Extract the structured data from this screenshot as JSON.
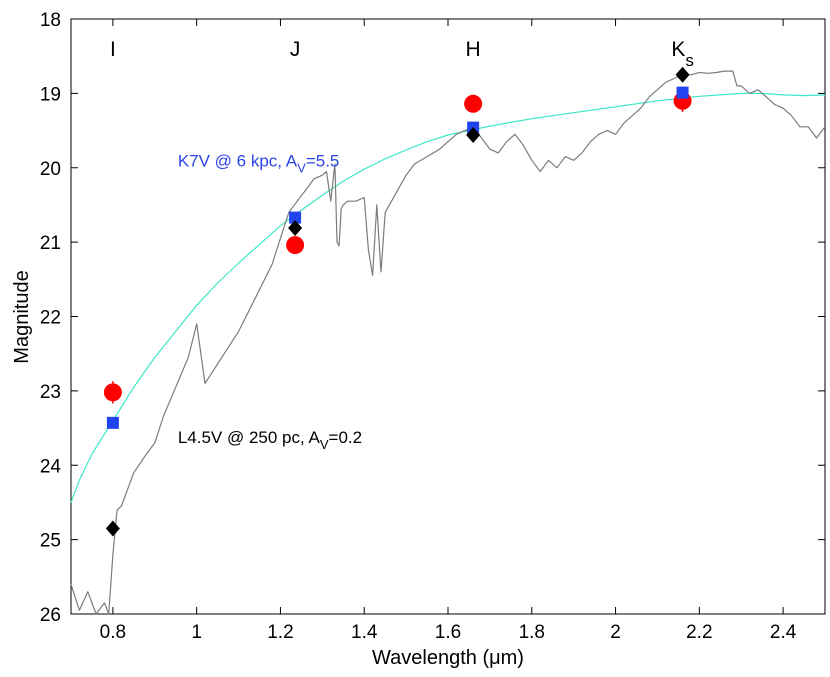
{
  "chart_data": {
    "type": "line",
    "xlabel": "Wavelength (μm)",
    "ylabel": "Magnitude",
    "xlim": [
      0.7,
      2.5
    ],
    "ylim": [
      26,
      18
    ],
    "y_inverted": true,
    "grid": false,
    "x_ticks": [
      {
        "value": 0.8,
        "label": "0.8"
      },
      {
        "value": 1.0,
        "label": "1"
      },
      {
        "value": 1.2,
        "label": "1.2"
      },
      {
        "value": 1.4,
        "label": "1.4"
      },
      {
        "value": 1.6,
        "label": "1.6"
      },
      {
        "value": 1.8,
        "label": "1.8"
      },
      {
        "value": 2.0,
        "label": "2"
      },
      {
        "value": 2.2,
        "label": "2.2"
      },
      {
        "value": 2.4,
        "label": "2.4"
      }
    ],
    "y_ticks": [
      {
        "value": 18,
        "label": "18"
      },
      {
        "value": 19,
        "label": "19"
      },
      {
        "value": 20,
        "label": "20"
      },
      {
        "value": 21,
        "label": "21"
      },
      {
        "value": 22,
        "label": "22"
      },
      {
        "value": 23,
        "label": "23"
      },
      {
        "value": 24,
        "label": "24"
      },
      {
        "value": 25,
        "label": "25"
      },
      {
        "value": 26,
        "label": "26"
      }
    ],
    "band_labels": [
      {
        "x": 0.8,
        "text": "I",
        "sub": ""
      },
      {
        "x": 1.235,
        "text": "J",
        "sub": ""
      },
      {
        "x": 1.66,
        "text": "H",
        "sub": ""
      },
      {
        "x": 2.16,
        "text": "K",
        "sub": "s"
      }
    ],
    "annotations": [
      {
        "id": "k7v",
        "prefix": "K7V @ 6 kpc, A",
        "sub": "V",
        "suffix": "=5.5",
        "x": 0.955,
        "y": 19.9,
        "color": "#2a45e8"
      },
      {
        "id": "l45v",
        "prefix": "L4.5V @ 250 pc, A",
        "sub": "V",
        "suffix": "=0.2",
        "x": 0.955,
        "y": 23.62,
        "color": "#000000"
      }
    ],
    "series": [
      {
        "name": "K7V @ 6 kpc, AV=5.5",
        "style": "line",
        "color": "#3de8c8",
        "x": [
          0.7,
          0.72,
          0.75,
          0.8,
          0.85,
          0.9,
          0.95,
          1.0,
          1.05,
          1.1,
          1.15,
          1.2,
          1.25,
          1.3,
          1.35,
          1.4,
          1.45,
          1.5,
          1.55,
          1.6,
          1.65,
          1.7,
          1.75,
          1.8,
          1.85,
          1.9,
          1.95,
          2.0,
          2.05,
          2.1,
          2.15,
          2.2,
          2.25,
          2.3,
          2.35,
          2.4,
          2.45,
          2.5
        ],
        "y": [
          24.5,
          24.2,
          23.85,
          23.4,
          22.95,
          22.55,
          22.2,
          21.85,
          21.55,
          21.28,
          21.03,
          20.78,
          20.57,
          20.37,
          20.18,
          20.02,
          19.88,
          19.76,
          19.65,
          19.56,
          19.5,
          19.44,
          19.39,
          19.34,
          19.3,
          19.26,
          19.22,
          19.18,
          19.14,
          19.1,
          19.07,
          19.04,
          19.02,
          19.0,
          19.0,
          19.02,
          19.03,
          19.02
        ]
      },
      {
        "name": "L4.5V @ 250 pc, AV=0.2",
        "style": "line",
        "color": "#7c7c7c",
        "x": [
          0.7,
          0.72,
          0.74,
          0.76,
          0.78,
          0.79,
          0.8,
          0.81,
          0.82,
          0.85,
          0.88,
          0.9,
          0.92,
          0.95,
          0.98,
          1.0,
          1.02,
          1.1,
          1.18,
          1.2,
          1.22,
          1.24,
          1.26,
          1.28,
          1.3,
          1.31,
          1.32,
          1.33,
          1.335,
          1.34,
          1.345,
          1.35,
          1.36,
          1.38,
          1.4,
          1.41,
          1.42,
          1.43,
          1.44,
          1.45,
          1.46,
          1.48,
          1.5,
          1.52,
          1.55,
          1.58,
          1.6,
          1.62,
          1.64,
          1.66,
          1.68,
          1.7,
          1.72,
          1.74,
          1.76,
          1.78,
          1.8,
          1.82,
          1.84,
          1.86,
          1.88,
          1.9,
          1.92,
          1.94,
          1.96,
          1.98,
          2.0,
          2.02,
          2.04,
          2.06,
          2.08,
          2.1,
          2.12,
          2.14,
          2.16,
          2.18,
          2.2,
          2.22,
          2.24,
          2.26,
          2.28,
          2.29,
          2.3,
          2.32,
          2.34,
          2.36,
          2.38,
          2.4,
          2.42,
          2.44,
          2.46,
          2.48,
          2.5
        ],
        "y": [
          25.6,
          25.95,
          25.7,
          26.0,
          25.85,
          26.0,
          25.2,
          24.6,
          24.55,
          24.1,
          23.85,
          23.7,
          23.35,
          22.95,
          22.55,
          22.1,
          22.9,
          22.2,
          21.3,
          20.95,
          20.6,
          20.45,
          20.3,
          20.15,
          20.1,
          20.05,
          20.45,
          19.95,
          21.0,
          21.05,
          20.55,
          20.5,
          20.45,
          20.45,
          20.4,
          21.1,
          21.45,
          20.5,
          21.4,
          20.6,
          20.5,
          20.3,
          20.1,
          19.95,
          19.85,
          19.75,
          19.65,
          19.55,
          19.5,
          19.45,
          19.6,
          19.75,
          19.8,
          19.65,
          19.55,
          19.7,
          19.9,
          20.05,
          19.9,
          20.0,
          19.85,
          19.9,
          19.8,
          19.65,
          19.55,
          19.5,
          19.55,
          19.4,
          19.3,
          19.2,
          19.05,
          18.95,
          18.85,
          18.8,
          18.75,
          18.75,
          18.72,
          18.73,
          18.72,
          18.7,
          18.7,
          18.9,
          18.9,
          19.0,
          18.95,
          19.05,
          19.15,
          19.2,
          19.3,
          19.45,
          19.45,
          19.6,
          19.45
        ]
      },
      {
        "name": "red circles",
        "style": "circle",
        "color": "#ff0000",
        "x": [
          0.8,
          1.235,
          1.66,
          2.16
        ],
        "y": [
          23.02,
          21.04,
          19.14,
          19.1
        ],
        "yerr": [
          0.15,
          0.0,
          0.0,
          0.15
        ]
      },
      {
        "name": "blue squares",
        "style": "square",
        "color": "#2244ee",
        "x": [
          0.8,
          1.235,
          1.66,
          2.16
        ],
        "y": [
          23.43,
          20.67,
          19.46,
          18.99
        ]
      },
      {
        "name": "black diamonds",
        "style": "diamond",
        "color": "#000000",
        "x": [
          0.8,
          1.235,
          1.66,
          2.16
        ],
        "y": [
          24.85,
          20.81,
          19.56,
          18.75
        ]
      }
    ]
  }
}
